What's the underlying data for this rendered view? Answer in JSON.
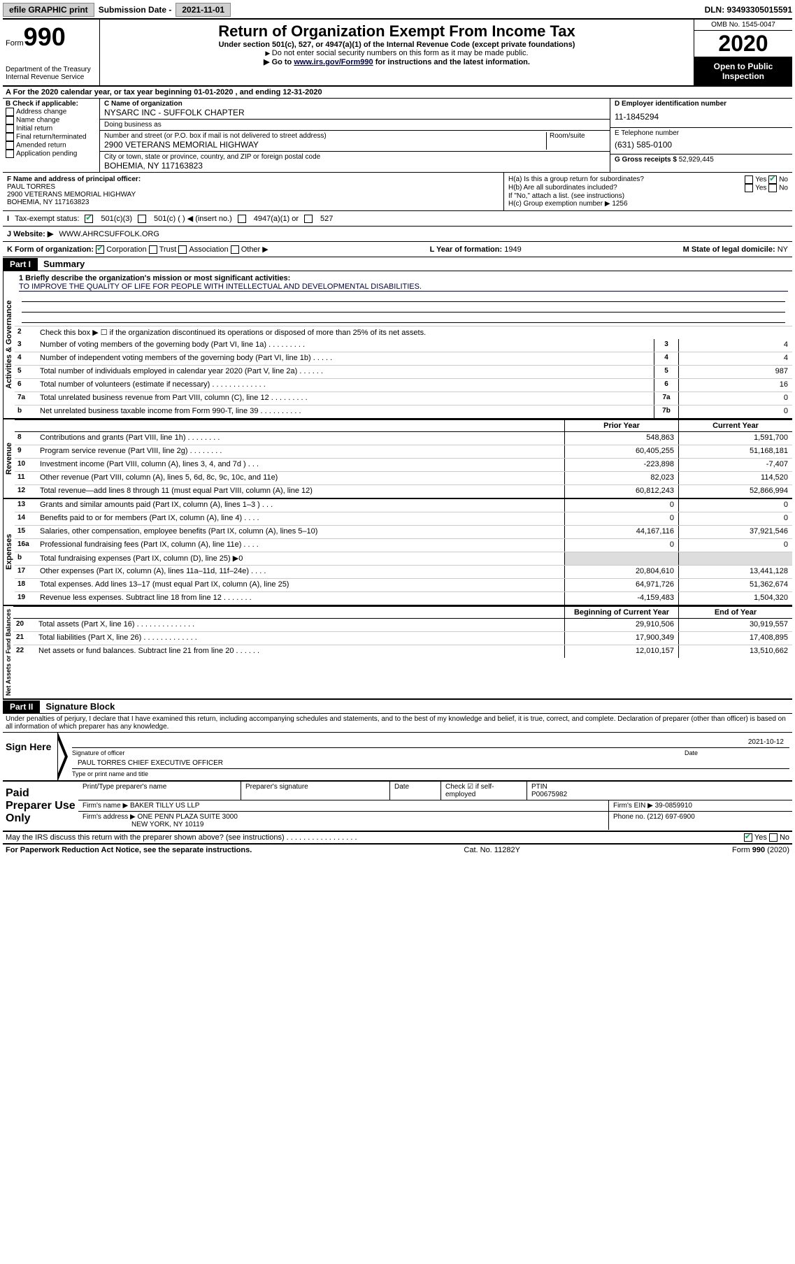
{
  "topbar": {
    "efile": "efile GRAPHIC print",
    "sub_label": "Submission Date - ",
    "sub_date": "2021-11-01",
    "dln": "DLN: 93493305015591"
  },
  "header": {
    "form_word": "Form",
    "form_no": "990",
    "dept": "Department of the Treasury\nInternal Revenue Service",
    "title": "Return of Organization Exempt From Income Tax",
    "subtitle": "Under section 501(c), 527, or 4947(a)(1) of the Internal Revenue Code (except private foundations)",
    "instr1": "Do not enter social security numbers on this form as it may be made public.",
    "instr2_pre": "Go to ",
    "instr2_link": "www.irs.gov/Form990",
    "instr2_post": " for instructions and the latest information.",
    "omb": "OMB No. 1545-0047",
    "year": "2020",
    "open": "Open to Public Inspection"
  },
  "sectionA": "For the 2020 calendar year, or tax year beginning 01-01-2020    , and ending 12-31-2020",
  "blockB": {
    "hdr": "B Check if applicable:",
    "items": [
      "Address change",
      "Name change",
      "Initial return",
      "Final return/terminated",
      "Amended return",
      "Application pending"
    ]
  },
  "blockC": {
    "name_lbl": "C Name of organization",
    "name": "NYSARC INC - SUFFOLK CHAPTER",
    "dba_lbl": "Doing business as",
    "street_lbl": "Number and street (or P.O. box if mail is not delivered to street address)",
    "room_lbl": "Room/suite",
    "street": "2900 VETERANS MEMORIAL HIGHWAY",
    "city_lbl": "City or town, state or province, country, and ZIP or foreign postal code",
    "city": "BOHEMIA, NY  117163823"
  },
  "blockD": {
    "ein_lbl": "D Employer identification number",
    "ein": "11-1845294",
    "tel_lbl": "E Telephone number",
    "tel": "(631) 585-0100",
    "gross_lbl": "G Gross receipts $ ",
    "gross": "52,929,445"
  },
  "blockF": {
    "lbl": "F  Name and address of principal officer:",
    "name": "PAUL TORRES",
    "addr1": "2900 VETERANS MEMORIAL HIGHWAY",
    "addr2": "BOHEMIA, NY  117163823"
  },
  "blockH": {
    "ha": "H(a)  Is this a group return for subordinates?",
    "hb": "H(b)  Are all subordinates included?",
    "hb_note": "If \"No,\" attach a list. (see instructions)",
    "hc": "H(c)  Group exemption number ▶",
    "hc_val": "1256"
  },
  "taxrow": {
    "lbl": "Tax-exempt status:",
    "opts": [
      "501(c)(3)",
      "501(c) (    ) ◀ (insert no.)",
      "4947(a)(1) or",
      "527"
    ]
  },
  "webrow": {
    "lbl": "J   Website: ▶",
    "val": "WWW.AHRCSUFFOLK.ORG"
  },
  "korg": {
    "lbl": "K Form of organization:",
    "opts": [
      "Corporation",
      "Trust",
      "Association",
      "Other ▶"
    ],
    "year_lbl": "L Year of formation:",
    "year": "1949",
    "state_lbl": "M State of legal domicile:",
    "state": "NY"
  },
  "part1": {
    "hdr": "Part I",
    "title": "Summary",
    "gov_label": "Activities & Governance",
    "rev_label": "Revenue",
    "exp_label": "Expenses",
    "net_label": "Net Assets or Fund Balances",
    "line1_lbl": "1  Briefly describe the organization's mission or most significant activities:",
    "mission": "TO IMPROVE THE QUALITY OF LIFE FOR PEOPLE WITH INTELLECTUAL AND DEVELOPMENTAL DISABILITIES.",
    "line2": "Check this box ▶ ☐  if the organization discontinued its operations or disposed of more than 25% of its net assets.",
    "lines_gov": [
      {
        "n": "3",
        "t": "Number of voting members of the governing body (Part VI, line 1a)   .    .    .    .    .    .    .    .    .",
        "b": "3",
        "v": "4"
      },
      {
        "n": "4",
        "t": "Number of independent voting members of the governing body (Part VI, line 1b)   .    .    .    .    .",
        "b": "4",
        "v": "4"
      },
      {
        "n": "5",
        "t": "Total number of individuals employed in calendar year 2020 (Part V, line 2a)   .    .    .    .    .    .",
        "b": "5",
        "v": "987"
      },
      {
        "n": "6",
        "t": "Total number of volunteers (estimate if necessary)   .    .    .    .    .    .    .    .    .    .    .    .    .",
        "b": "6",
        "v": "16"
      },
      {
        "n": "7a",
        "t": "Total unrelated business revenue from Part VIII, column (C), line 12   .    .    .    .    .    .    .    .    .",
        "b": "7a",
        "v": "0"
      },
      {
        "n": "b",
        "t": "Net unrelated business taxable income from Form 990-T, line 39   .    .    .    .    .    .    .    .    .    .",
        "b": "7b",
        "v": "0"
      }
    ],
    "col_prior": "Prior Year",
    "col_current": "Current Year",
    "lines_rev": [
      {
        "n": "8",
        "t": "Contributions and grants (Part VIII, line 1h)   .    .    .    .    .    .    .    .",
        "p": "548,863",
        "c": "1,591,700"
      },
      {
        "n": "9",
        "t": "Program service revenue (Part VIII, line 2g)   .    .    .    .    .    .    .    .",
        "p": "60,405,255",
        "c": "51,168,181"
      },
      {
        "n": "10",
        "t": "Investment income (Part VIII, column (A), lines 3, 4, and 7d )   .    .    .",
        "p": "-223,898",
        "c": "-7,407"
      },
      {
        "n": "11",
        "t": "Other revenue (Part VIII, column (A), lines 5, 6d, 8c, 9c, 10c, and 11e)",
        "p": "82,023",
        "c": "114,520"
      },
      {
        "n": "12",
        "t": "Total revenue—add lines 8 through 11 (must equal Part VIII, column (A), line 12)",
        "p": "60,812,243",
        "c": "52,866,994"
      }
    ],
    "lines_exp": [
      {
        "n": "13",
        "t": "Grants and similar amounts paid (Part IX, column (A), lines 1–3 )   .    .    .",
        "p": "0",
        "c": "0"
      },
      {
        "n": "14",
        "t": "Benefits paid to or for members (Part IX, column (A), line 4)   .    .    .    .",
        "p": "0",
        "c": "0"
      },
      {
        "n": "15",
        "t": "Salaries, other compensation, employee benefits (Part IX, column (A), lines 5–10)",
        "p": "44,167,116",
        "c": "37,921,546"
      },
      {
        "n": "16a",
        "t": "Professional fundraising fees (Part IX, column (A), line 11e)   .    .    .    .",
        "p": "0",
        "c": "0"
      },
      {
        "n": "b",
        "t": "Total fundraising expenses (Part IX, column (D), line 25) ▶0",
        "p": "",
        "c": "",
        "shade": true
      },
      {
        "n": "17",
        "t": "Other expenses (Part IX, column (A), lines 11a–11d, 11f–24e)   .    .    .    .",
        "p": "20,804,610",
        "c": "13,441,128"
      },
      {
        "n": "18",
        "t": "Total expenses. Add lines 13–17 (must equal Part IX, column (A), line 25)",
        "p": "64,971,726",
        "c": "51,362,674"
      },
      {
        "n": "19",
        "t": "Revenue less expenses. Subtract line 18 from line 12   .    .    .    .    .    .    .",
        "p": "-4,159,483",
        "c": "1,504,320"
      }
    ],
    "col_begin": "Beginning of Current Year",
    "col_end": "End of Year",
    "lines_net": [
      {
        "n": "20",
        "t": "Total assets (Part X, line 16)   .    .    .    .    .    .    .    .    .    .    .    .    .    .",
        "p": "29,910,506",
        "c": "30,919,557"
      },
      {
        "n": "21",
        "t": "Total liabilities (Part X, line 26)   .    .    .    .    .    .    .    .    .    .    .    .    .",
        "p": "17,900,349",
        "c": "17,408,895"
      },
      {
        "n": "22",
        "t": "Net assets or fund balances. Subtract line 21 from line 20   .    .    .    .    .    .",
        "p": "12,010,157",
        "c": "13,510,662"
      }
    ]
  },
  "part2": {
    "hdr": "Part II",
    "title": "Signature Block",
    "decl": "Under penalties of perjury, I declare that I have examined this return, including accompanying schedules and statements, and to the best of my knowledge and belief, it is true, correct, and complete. Declaration of preparer (other than officer) is based on all information of which preparer has any knowledge.",
    "sign_here": "Sign Here",
    "sig_officer": "Signature of officer",
    "sig_date": "2021-10-12",
    "date_lbl": "Date",
    "officer_name": "PAUL TORRES  CHIEF EXECUTIVE OFFICER",
    "type_lbl": "Type or print name and title"
  },
  "prep": {
    "hdr": "Paid Preparer Use Only",
    "col1": "Print/Type preparer's name",
    "col2": "Preparer's signature",
    "col3": "Date",
    "col4_chk": "Check ☑  if self-employed",
    "ptin_lbl": "PTIN",
    "ptin": "P00675982",
    "firm_lbl": "Firm's name      ▶",
    "firm": "BAKER TILLY US LLP",
    "ein_lbl": "Firm's EIN ▶",
    "ein": "39-0859910",
    "addr_lbl": "Firm's address ▶",
    "addr": "ONE PENN PLAZA SUITE 3000",
    "addr2": "NEW YORK, NY  10119",
    "phone_lbl": "Phone no.",
    "phone": "(212) 697-6900"
  },
  "footer": {
    "discuss": "May the IRS discuss this return with the preparer shown above? (see instructions)   .    .    .    .    .    .    .    .    .    .    .    .    .    .    .    .    .",
    "yes": "Yes",
    "no": "No",
    "paperwork": "For Paperwork Reduction Act Notice, see the separate instructions.",
    "cat": "Cat. No. 11282Y",
    "form": "Form 990 (2020)"
  }
}
